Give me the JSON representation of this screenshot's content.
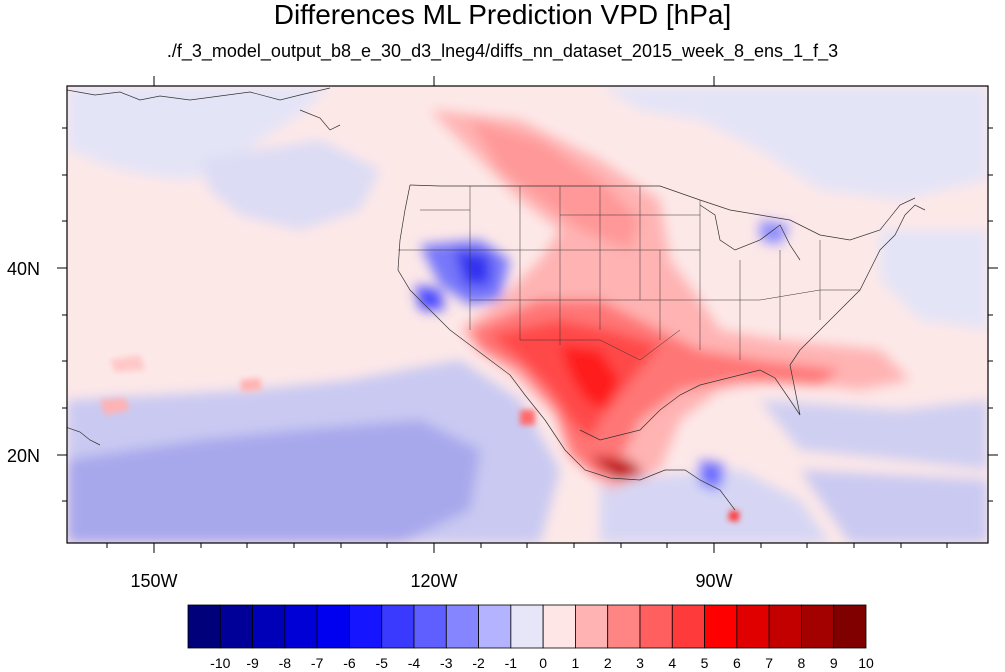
{
  "title": "Differences ML Prediction VPD [hPa]",
  "subtitle": "./f_3_model_output_b8_e_30_d3_lneg4/diffs_nn_dataset_2015_week_8_ens_1_f_3",
  "map": {
    "background_color": "#fde8e8",
    "lon_labels": [
      "150W",
      "120W",
      "90W"
    ],
    "lat_labels": [
      "40N",
      "20N"
    ]
  },
  "colorbar": {
    "labels": [
      "-10",
      "-9",
      "-8",
      "-7",
      "-6",
      "-5",
      "-4",
      "-3",
      "-2",
      "-1",
      "0",
      "1",
      "2",
      "3",
      "4",
      "5",
      "6",
      "7",
      "8",
      "9",
      "10"
    ],
    "colors": [
      "#00007a",
      "#000099",
      "#0000b8",
      "#0000d6",
      "#0000f0",
      "#1515ff",
      "#3a3aff",
      "#5f5fff",
      "#8585ff",
      "#b3b3ff",
      "#e6e6f8",
      "#ffe6e6",
      "#ffb3b3",
      "#ff8585",
      "#ff5f5f",
      "#ff3a3a",
      "#ff0000",
      "#e00000",
      "#c20000",
      "#a30000",
      "#800000"
    ]
  }
}
